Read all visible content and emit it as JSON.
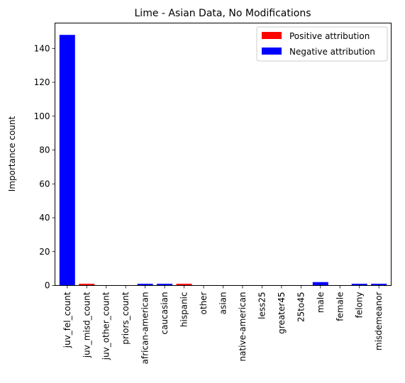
{
  "chart_data": {
    "type": "bar",
    "title": "Lime - Asian Data, No Modifications",
    "xlabel": "",
    "ylabel": "Importance count",
    "ylim": [
      0,
      155
    ],
    "yticks": [
      0,
      20,
      40,
      60,
      80,
      100,
      120,
      140
    ],
    "grid": false,
    "legend_position": "top-right",
    "categories": [
      "juv_fel_count",
      "juv_misd_count",
      "juv_other_count",
      "priors_count",
      "african-american",
      "caucasian",
      "hispanic",
      "other",
      "asian",
      "native-american",
      "less25",
      "greater45",
      "25to45",
      "male",
      "female",
      "felony",
      "misdemeanor"
    ],
    "values": [
      148,
      1,
      0,
      0,
      1,
      1,
      1,
      0,
      0,
      0,
      0,
      0,
      0,
      2,
      0,
      1,
      1
    ],
    "bar_attribution": [
      "negative",
      "positive",
      "negative",
      "negative",
      "negative",
      "negative",
      "positive",
      "negative",
      "negative",
      "negative",
      "negative",
      "negative",
      "negative",
      "negative",
      "negative",
      "negative",
      "negative"
    ],
    "legend": [
      {
        "key": "positive",
        "label": "Positive attribution",
        "color": "#ff0000"
      },
      {
        "key": "negative",
        "label": "Negative attribution",
        "color": "#0000ff"
      }
    ]
  }
}
